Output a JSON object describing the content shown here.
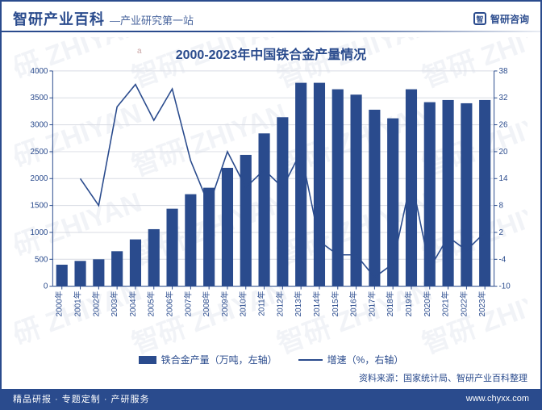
{
  "header": {
    "brand": "智研产业百科",
    "tagline": "—产业研究第一站",
    "right_label": "智研咨询",
    "small_decor": "a"
  },
  "chart": {
    "type": "bar+line",
    "title": "2000-2023年中国铁合金产量情况",
    "categories": [
      "2000年",
      "2001年",
      "2002年",
      "2003年",
      "2004年",
      "2005年",
      "2006年",
      "2007年",
      "2008年",
      "2009年",
      "2010年",
      "2011年",
      "2012年",
      "2013年",
      "2014年",
      "2015年",
      "2016年",
      "2017年",
      "2018年",
      "2019年",
      "2020年",
      "2021年",
      "2022年",
      "2023年"
    ],
    "bar": {
      "label": "铁合金产量（万吨，左轴）",
      "values": [
        400,
        470,
        500,
        650,
        870,
        1060,
        1440,
        1710,
        1830,
        2200,
        2440,
        2840,
        3140,
        3780,
        3780,
        3660,
        3560,
        3280,
        3120,
        3660,
        3420,
        3460,
        3400,
        3460
      ],
      "color": "#2a4b8d",
      "bar_width_ratio": 0.62
    },
    "line": {
      "label": "增速（%，右轴）",
      "values": [
        null,
        14,
        8,
        30,
        35,
        27,
        34,
        18,
        8,
        20,
        12,
        16,
        12,
        20,
        0,
        -3,
        -3,
        -8,
        -5,
        14,
        -6,
        1,
        -2,
        2
      ],
      "color": "#2a4b8d",
      "width": 1.6
    },
    "y_left": {
      "min": 0,
      "max": 4000,
      "step": 500
    },
    "y_right": {
      "min": -10,
      "max": 38,
      "step": 6
    },
    "grid_color": "#d8dbe3",
    "axis_color": "#2a4b8d",
    "background": "#ffffff",
    "label_fontsize": 10,
    "title_fontsize": 16
  },
  "legend": {
    "bar": "铁合金产量（万吨，左轴）",
    "line": "增速（%，右轴）"
  },
  "source": "资料来源：国家统计局、智研产业百科整理",
  "footer": {
    "left": "精品研报 · 专题定制 · 产研服务",
    "right": "www.chyxx.com"
  },
  "watermark": "智研 ZHIYAN"
}
